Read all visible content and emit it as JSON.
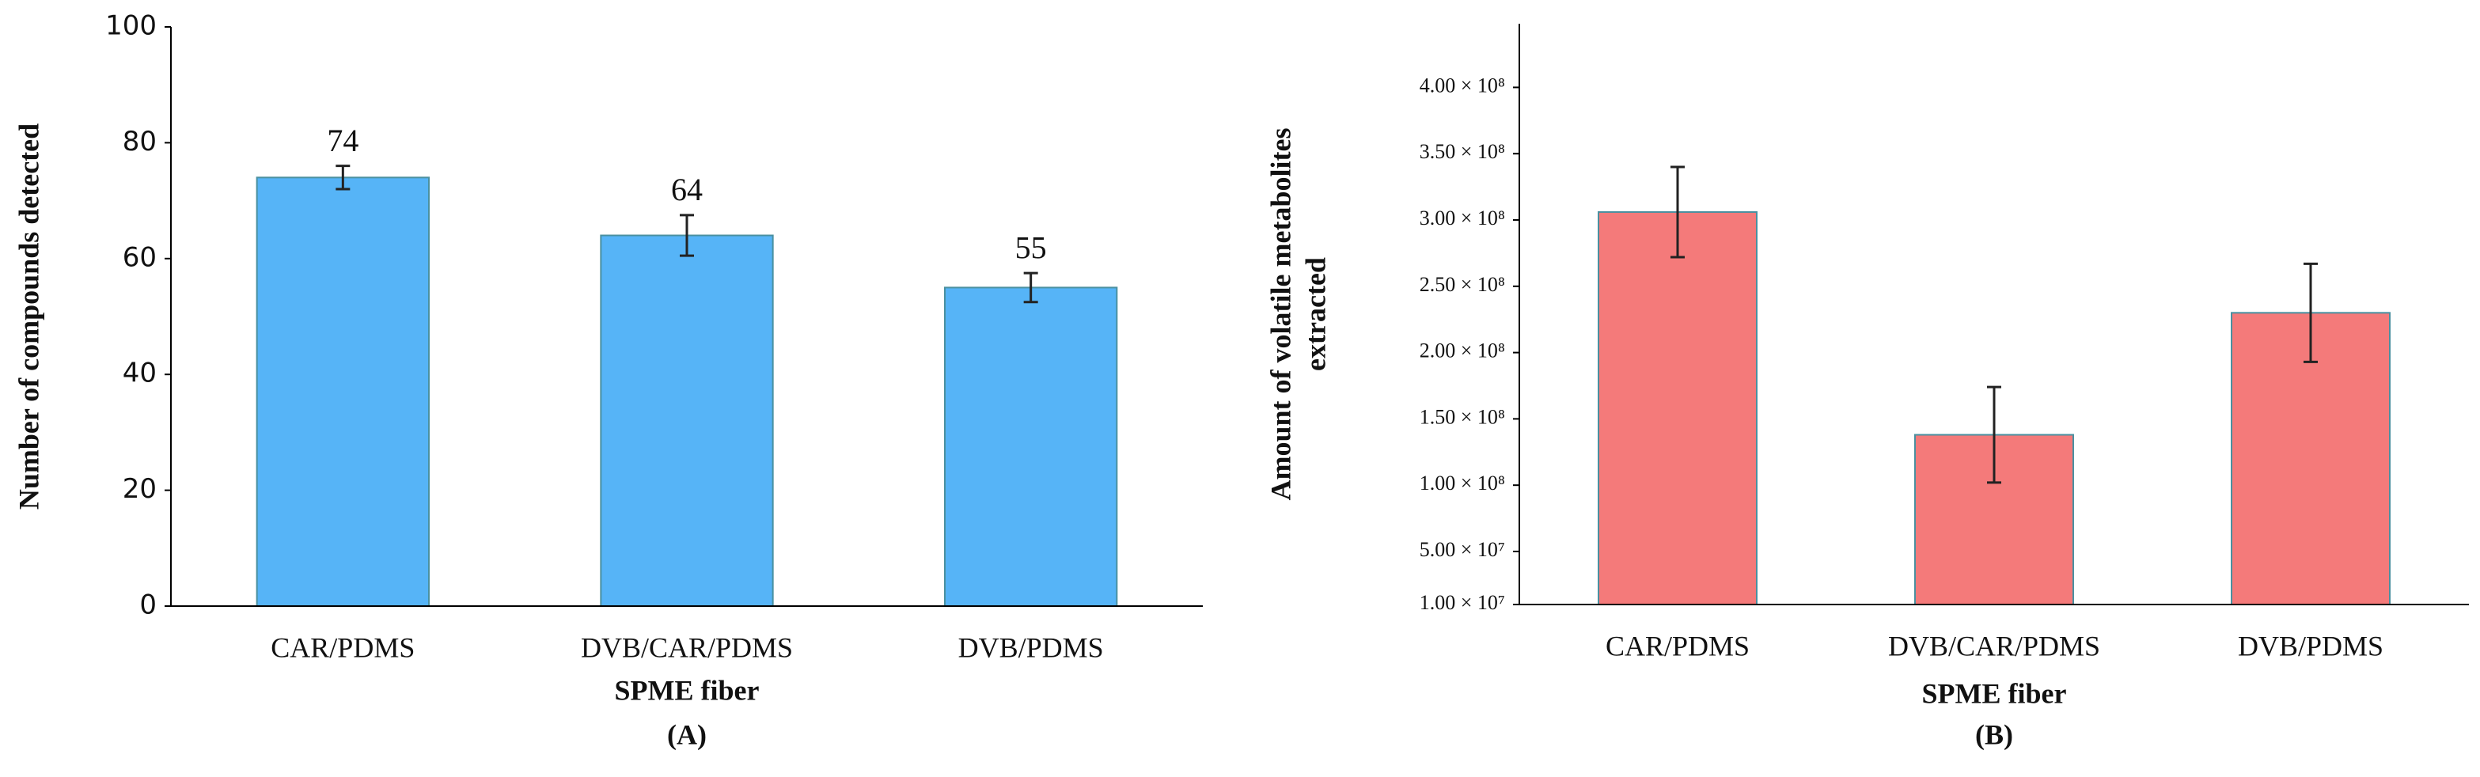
{
  "chart_data": [
    {
      "type": "bar",
      "ylabel": [
        "Number of compounds detected"
      ],
      "xlabel": "SPME fiber",
      "panel": "(A)",
      "categories": [
        "CAR/PDMS",
        "DVB/CAR/PDMS",
        "DVB/PDMS"
      ],
      "values": [
        74,
        64,
        55
      ],
      "errors": [
        2,
        3.5,
        2.5
      ],
      "show_values": true,
      "color": "#56b4f7",
      "ylim": [
        0,
        100
      ],
      "yticks": [
        0,
        20,
        40,
        60,
        80,
        100
      ],
      "grid": false
    },
    {
      "type": "bar",
      "ylabel": [
        "Amount of volatile metabolites",
        "extracted"
      ],
      "xlabel": "SPME fiber",
      "panel": "(B)",
      "categories": [
        "CAR/PDMS",
        "DVB/CAR/PDMS",
        "DVB/PDMS"
      ],
      "values": [
        306000000,
        138000000,
        230000000
      ],
      "errors": [
        34000000,
        36000000,
        37000000
      ],
      "show_values": false,
      "color": "#f47a7a",
      "ylim": [
        10000000,
        448000000
      ],
      "yticks": [
        {
          "value": 10000000,
          "label": "1.00 × 10⁷"
        },
        {
          "value": 50000000,
          "label": "5.00 × 10⁷"
        },
        {
          "value": 100000000,
          "label": "1.00 × 10⁸"
        },
        {
          "value": 150000000,
          "label": "1.50 × 10⁸"
        },
        {
          "value": 200000000,
          "label": "2.00 × 10⁸"
        },
        {
          "value": 250000000,
          "label": "2.50 × 10⁸"
        },
        {
          "value": 300000000,
          "label": "3.00 × 10⁸"
        },
        {
          "value": 350000000,
          "label": "3.50 × 10⁸"
        },
        {
          "value": 400000000,
          "label": "4.00 × 10⁸"
        }
      ],
      "grid": false
    }
  ]
}
